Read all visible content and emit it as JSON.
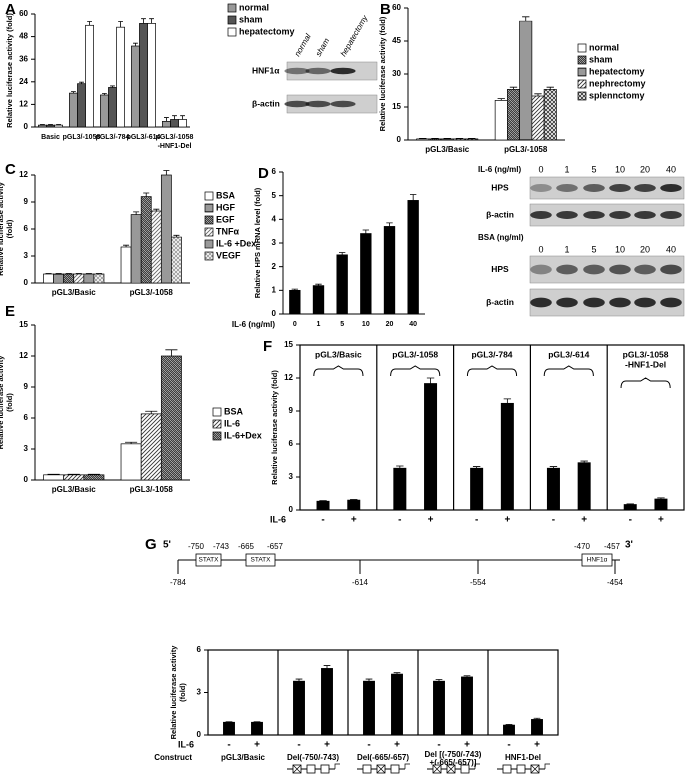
{
  "chart_data": [
    {
      "type": "bar",
      "panel": "A",
      "ylabel": "Relative luciferase activity (fold)",
      "categories": [
        "Basic",
        "pGL3/-1058",
        "pGL3/-784",
        "pGL3/-614",
        [
          "pGL3/-1058",
          "-HNF1-Del"
        ]
      ],
      "series": [
        {
          "name": "normal",
          "color": "#999999",
          "values": [
            1,
            18,
            17,
            43,
            3
          ],
          "errors": [
            0.3,
            0.8,
            0.8,
            1.5,
            2
          ]
        },
        {
          "name": "sham",
          "color": "#555555",
          "values": [
            1,
            23,
            21,
            55,
            4
          ],
          "errors": [
            0.3,
            0.8,
            0.8,
            2.5,
            2
          ]
        },
        {
          "name": "hepatectomy",
          "color": "#ffffff",
          "values": [
            1,
            54,
            53,
            55,
            4
          ],
          "errors": [
            0.3,
            2,
            3,
            2.5,
            2
          ]
        }
      ],
      "ylim": [
        0,
        60
      ],
      "yticks": [
        0,
        12,
        24,
        36,
        48,
        60
      ],
      "legend": "right"
    },
    {
      "type": "bar",
      "panel": "B",
      "ylabel": "Relative luciferase activity (fold)",
      "categories": [
        "pGL3/Basic",
        "pGL3/-1058"
      ],
      "series": [
        {
          "name": "normal",
          "color": "#ffffff",
          "values": [
            0.5,
            18
          ],
          "errors": [
            0.2,
            0.8
          ]
        },
        {
          "name": "sham",
          "color": "#333333",
          "pattern": "dense",
          "values": [
            0.5,
            23
          ],
          "errors": [
            0.2,
            1
          ]
        },
        {
          "name": "hepatectomy",
          "color": "#333333",
          "pattern": "horizontal",
          "values": [
            0.5,
            54
          ],
          "errors": [
            0.2,
            2
          ]
        },
        {
          "name": "nephrectomy",
          "color": "#333333",
          "pattern": "diagonal",
          "values": [
            0.5,
            20
          ],
          "errors": [
            0.2,
            1
          ]
        },
        {
          "name": "splennctomy",
          "color": "#333333",
          "pattern": "cross",
          "values": [
            0.5,
            23
          ],
          "errors": [
            0.2,
            1
          ]
        }
      ],
      "ylim": [
        0,
        60
      ],
      "yticks": [
        0,
        15,
        30,
        45,
        60
      ],
      "legend": "right"
    },
    {
      "type": "bar",
      "panel": "C",
      "ylabel": [
        "Relative luciferase activity",
        "(fold)"
      ],
      "categories": [
        "pGL3/Basic",
        "pGL3/-1058"
      ],
      "series": [
        {
          "name": "BSA",
          "color": "#ffffff",
          "values": [
            1,
            4
          ],
          "errors": [
            0.05,
            0.2
          ]
        },
        {
          "name": "HGF",
          "color": "#333333",
          "pattern": "horizontal",
          "values": [
            1,
            7.6
          ],
          "errors": [
            0.05,
            0.3
          ]
        },
        {
          "name": "EGF",
          "color": "#333333",
          "pattern": "dense",
          "values": [
            1,
            9.6
          ],
          "errors": [
            0.05,
            0.4
          ]
        },
        {
          "name": "TNFα",
          "color": "#666666",
          "pattern": "diagonal",
          "values": [
            1,
            8
          ],
          "errors": [
            0.05,
            0.2
          ]
        },
        {
          "name": "IL-6 +Dex",
          "color": "#999999",
          "values": [
            1,
            12
          ],
          "errors": [
            0.05,
            0.5
          ]
        },
        {
          "name": "VEGF",
          "color": "#999999",
          "pattern": "cross",
          "values": [
            1,
            5.1
          ],
          "errors": [
            0.05,
            0.2
          ]
        }
      ],
      "ylim": [
        0,
        12
      ],
      "yticks": [
        0,
        3,
        6,
        9,
        12
      ],
      "legend": "right"
    },
    {
      "type": "bar",
      "panel": "D",
      "ylabel": "Relative HPS mRNA level (fold)",
      "xlabel": "IL-6 (ng/ml)",
      "categories": [
        "0",
        "1",
        "5",
        "10",
        "20",
        "40"
      ],
      "values": [
        1,
        1.2,
        2.5,
        3.4,
        3.7,
        4.8
      ],
      "errors": [
        0.05,
        0.06,
        0.1,
        0.15,
        0.15,
        0.25
      ],
      "color": "#000000",
      "ylim": [
        0,
        6
      ],
      "yticks": [
        0,
        1,
        2,
        3,
        4,
        5,
        6
      ]
    },
    {
      "type": "bar",
      "panel": "E",
      "ylabel": [
        "Relative luciferase activity",
        "(fold)"
      ],
      "categories": [
        "pGL3/Basic",
        "pGL3/-1058"
      ],
      "series": [
        {
          "name": "BSA",
          "color": "#ffffff",
          "values": [
            0.5,
            3.5
          ],
          "errors": [
            0.05,
            0.15
          ]
        },
        {
          "name": "IL-6",
          "color": "#333333",
          "pattern": "diagonal",
          "values": [
            0.5,
            6.4
          ],
          "errors": [
            0.05,
            0.25
          ]
        },
        {
          "name": "IL-6+Dex",
          "color": "#333333",
          "pattern": "dense",
          "values": [
            0.5,
            12
          ],
          "errors": [
            0.05,
            0.6
          ]
        }
      ],
      "ylim": [
        0,
        15
      ],
      "yticks": [
        0,
        3,
        6,
        9,
        12,
        15
      ],
      "legend": "right"
    },
    {
      "type": "bar",
      "panel": "F",
      "ylabel": "Relative luciferase activity (fold)",
      "categories": [
        "pGL3/Basic",
        "pGL3/-1058",
        "pGL3/-784",
        "pGL3/-614",
        [
          "pGL3/-1058",
          "-HNF1-Del"
        ]
      ],
      "series": [
        {
          "name": "-",
          "color": "#000000",
          "values": [
            0.8,
            3.8,
            3.8,
            3.8,
            0.5
          ],
          "errors": [
            0.05,
            0.2,
            0.15,
            0.15,
            0.05
          ]
        },
        {
          "name": "+",
          "color": "#000000",
          "values": [
            0.9,
            11.5,
            9.7,
            4.3,
            1.0
          ],
          "errors": [
            0.05,
            0.5,
            0.4,
            0.15,
            0.1
          ]
        }
      ],
      "condition_label": "IL-6",
      "category_position": "top",
      "boxed": true,
      "ylim": [
        0,
        15
      ],
      "yticks": [
        0,
        3,
        6,
        9,
        12,
        15
      ]
    },
    {
      "type": "bar",
      "panel": "G",
      "ylabel": [
        "Relative luciferase activity",
        "(fold)"
      ],
      "categories": [
        "pGL3/Basic",
        "Del(-750/-743)",
        "Del(-665/-657)",
        [
          "Del [(-750/-743)",
          "+(-665/-657)]"
        ],
        "HNF1-Del"
      ],
      "series": [
        {
          "name": "-",
          "color": "#000000",
          "values": [
            0.9,
            3.8,
            3.8,
            3.8,
            0.7
          ],
          "errors": [
            0.03,
            0.15,
            0.15,
            0.12,
            0.05
          ]
        },
        {
          "name": "+",
          "color": "#000000",
          "values": [
            0.9,
            4.7,
            4.3,
            4.1,
            1.1
          ],
          "errors": [
            0.03,
            0.2,
            0.1,
            0.08,
            0.08
          ]
        }
      ],
      "condition_label": "IL-6",
      "category_label": "Construct",
      "category_position": "bottom",
      "boxed": true,
      "ylim": [
        0,
        6
      ],
      "yticks": [
        0,
        3,
        6
      ]
    }
  ],
  "blots": [
    {
      "lanes": [
        "normal",
        "sham",
        "hepatectomy"
      ],
      "rows": [
        "HNF1α",
        "β-actin"
      ]
    },
    {
      "header": "IL-6 (ng/ml)",
      "lanes": [
        0,
        1,
        5,
        10,
        20,
        40
      ],
      "rows": [
        "HPS",
        "β-actin"
      ]
    },
    {
      "header": "BSA (ng/ml)",
      "lanes": [
        0,
        1,
        5,
        10,
        20,
        40
      ],
      "rows": [
        "HPS",
        "β-actin"
      ]
    }
  ],
  "diagram": {
    "ends": [
      "5'",
      "3'"
    ],
    "elements": [
      {
        "label": "STATX",
        "from": -750,
        "to": -743
      },
      {
        "label": "STATX",
        "from": -665,
        "to": -657
      },
      {
        "label": "HNF1α",
        "from": -470,
        "to": -457
      }
    ],
    "scale": [
      -784,
      -614,
      -554,
      -454
    ]
  }
}
